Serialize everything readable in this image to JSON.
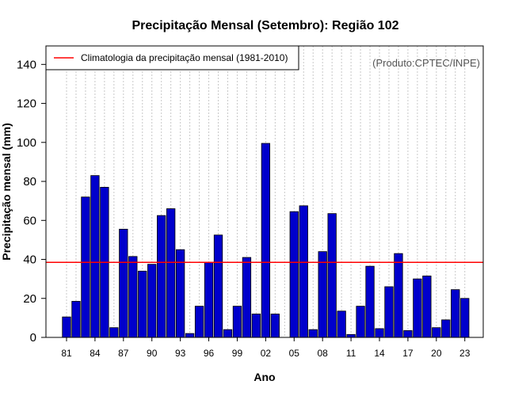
{
  "chart_data": {
    "type": "bar",
    "title": "Precipitação Mensal (Setembro): Região 102",
    "xlabel": "Ano",
    "ylabel": "Precipitação mensal (mm)",
    "ylim": [
      0,
      150
    ],
    "yticks": [
      0,
      20,
      40,
      60,
      80,
      100,
      120,
      140
    ],
    "years": [
      1981,
      1982,
      1983,
      1984,
      1985,
      1986,
      1987,
      1988,
      1989,
      1990,
      1991,
      1992,
      1993,
      1994,
      1995,
      1996,
      1997,
      1998,
      1999,
      2000,
      2001,
      2002,
      2003,
      2004,
      2005,
      2006,
      2007,
      2008,
      2009,
      2010,
      2011,
      2012,
      2013,
      2014,
      2015,
      2016,
      2017,
      2018,
      2019,
      2020,
      2021,
      2022,
      2023
    ],
    "values": [
      10.5,
      18.5,
      72,
      83,
      77,
      5,
      55.5,
      41.5,
      34,
      37.5,
      62.5,
      66,
      45,
      2,
      16,
      38.5,
      52.5,
      4,
      16,
      41,
      12,
      99.5,
      12,
      0,
      64.5,
      67.5,
      4,
      44,
      63.5,
      13.5,
      1.5,
      16,
      36.5,
      4.5,
      26,
      43,
      3.5,
      30,
      31.5,
      5,
      9,
      24.5,
      20
    ],
    "xtick_labels": [
      "81",
      "84",
      "87",
      "90",
      "93",
      "96",
      "99",
      "02",
      "05",
      "08",
      "11",
      "14",
      "17",
      "20",
      "23"
    ],
    "xtick_years": [
      1981,
      1984,
      1987,
      1990,
      1993,
      1996,
      1999,
      2002,
      2005,
      2008,
      2011,
      2014,
      2017,
      2020,
      2023
    ],
    "climatology": {
      "label": "Climatologia da precipitação mensal (1981-2010)",
      "value": 38.5,
      "color": "#ff0000"
    },
    "bar_color": "#0000cc",
    "grid": "vertical dotted",
    "legend_position": "top-left",
    "credit": "(Produto:CPTEC/INPE)"
  }
}
